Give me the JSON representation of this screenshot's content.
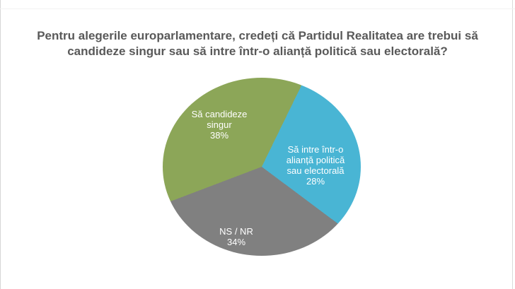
{
  "title": "Pentru alegerile europarlamentare, credeți că Partidul Realitatea are trebui să candideze singur sau să intre într-o alianță politică sau electorală?",
  "chart_data": {
    "type": "pie",
    "title": "Pentru alegerile europarlamentare, credeți că Partidul Realitatea are trebui să candideze singur sau să intre într-o alianță politică sau electorală?",
    "start_angle_deg": 26,
    "direction": "clockwise",
    "legend": "none",
    "label_color": "#ffffff",
    "slices": [
      {
        "label": "Să intre într-o alianță politică sau electorală",
        "value_pct": 28,
        "color": "#49b5d4",
        "display_lines": [
          "Să intre într-o",
          "alianță politică",
          "sau electorală",
          "28%"
        ]
      },
      {
        "label": "NS / NR",
        "value_pct": 34,
        "color": "#808080",
        "display_lines": [
          "NS / NR",
          "34%"
        ]
      },
      {
        "label": "Să candideze singur",
        "value_pct": 38,
        "color": "#8ca658",
        "display_lines": [
          "Să candideze",
          "singur",
          "38%"
        ]
      }
    ]
  }
}
